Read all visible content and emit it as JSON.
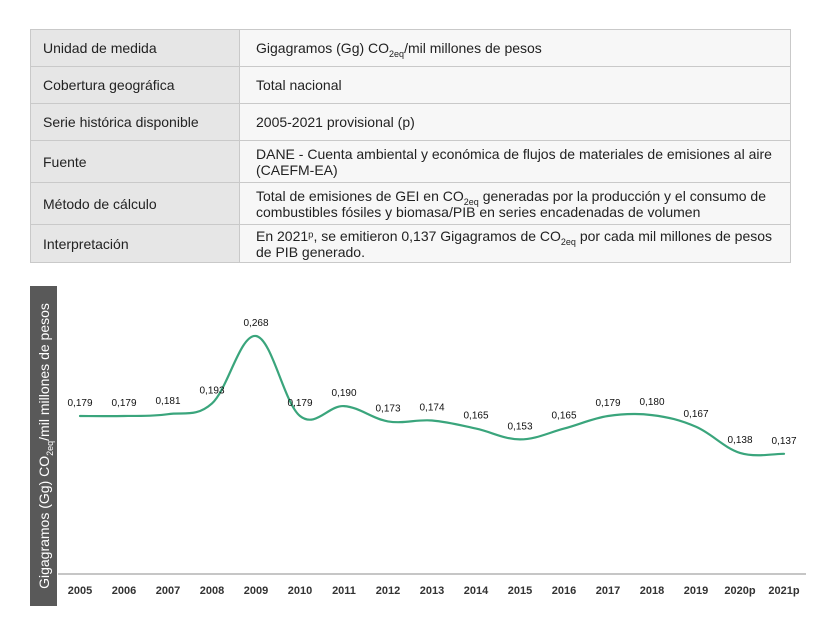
{
  "info_table": {
    "rows": [
      {
        "key": "Unidad de medida",
        "value_pre": "Gigagramos (Gg) CO",
        "value_sub": "2eq",
        "value_post": "/mil millones de pesos"
      },
      {
        "key": "Cobertura geográfica",
        "value": "Total nacional"
      },
      {
        "key": "Serie histórica disponible",
        "value": "2005-2021 provisional (p)"
      },
      {
        "key": "Fuente",
        "value": "DANE - Cuenta ambiental y económica de flujos de materiales de emisiones al aire (CAEFM-EA)"
      },
      {
        "key": "Método de cálculo",
        "value_pre": "Total de emisiones de GEI en CO",
        "value_sub": "2eq",
        "value_post": " generadas por la producción y el consumo de combustibles fósiles y biomasa/PIB en series encadenadas de volumen"
      },
      {
        "key": "Interpretación",
        "value_pre": "En 2021ᵖ,  se emitieron 0,137 Gigagramos de CO",
        "value_sub": "2eq",
        "value_post": " por cada mil millones de pesos de PIB generado."
      }
    ]
  },
  "chart_data": {
    "type": "line",
    "title": "",
    "xlabel": "",
    "ylabel_pre": "Gigagramos (Gg) CO",
    "ylabel_sub": "2eq",
    "ylabel_post": "/mil millones de pesos",
    "categories": [
      "2005",
      "2006",
      "2007",
      "2008",
      "2009",
      "2010",
      "2011",
      "2012",
      "2013",
      "2014",
      "2015",
      "2016",
      "2017",
      "2018",
      "2019",
      "2020p",
      "2021p"
    ],
    "values": [
      0.179,
      0.179,
      0.181,
      0.193,
      0.268,
      0.179,
      0.19,
      0.173,
      0.174,
      0.165,
      0.153,
      0.165,
      0.179,
      0.18,
      0.167,
      0.138,
      0.137
    ],
    "data_labels": [
      "0,179",
      "0,179",
      "0,181",
      "0,193",
      "0,268",
      "0,179",
      "0,190",
      "0,173",
      "0,174",
      "0,165",
      "0,153",
      "0,165",
      "0,179",
      "0,180",
      "0,167",
      "0,138",
      "0,137"
    ],
    "ylim": [
      0.0,
      0.3
    ],
    "grid": false,
    "line_color": "#3aa57c"
  }
}
